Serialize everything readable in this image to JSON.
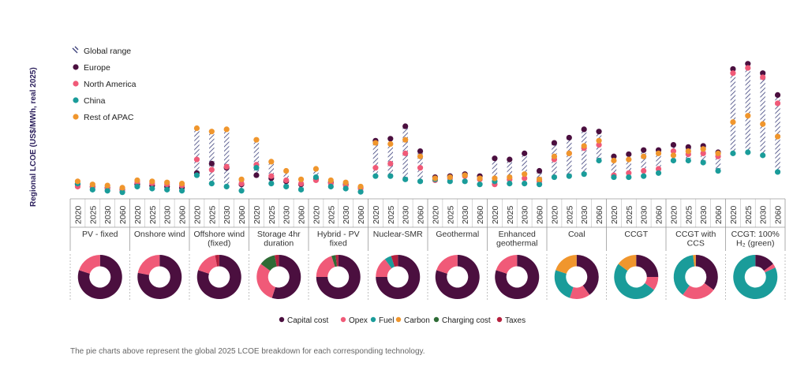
{
  "chart_data": {
    "type": "range-dot",
    "ylabel": "Regional LCOE (US$/MWh, real 2025)",
    "ylim": [
      0,
      400
    ],
    "years": [
      "2020",
      "2025",
      "2030",
      "2060"
    ],
    "legend": [
      {
        "key": "range",
        "label": "Global range"
      },
      {
        "key": "europe",
        "label": "Europe",
        "color": "#4b0f3f"
      },
      {
        "key": "north_america",
        "label": "North America",
        "color": "#f05a78"
      },
      {
        "key": "china",
        "label": "China",
        "color": "#1a9c9a"
      },
      {
        "key": "rest_apac",
        "label": "Rest of APAC",
        "color": "#f0962d"
      }
    ],
    "technologies": [
      {
        "name": "PV - fixed",
        "points": [
          {
            "year": "2020",
            "europe": 48,
            "north_america": 38,
            "china": 52,
            "rest_apac": 62
          },
          {
            "year": "2025",
            "europe": 38,
            "north_america": 35,
            "china": 24,
            "rest_apac": 48
          },
          {
            "year": "2030",
            "europe": 33,
            "north_america": 29,
            "china": 19,
            "rest_apac": 43
          },
          {
            "year": "2060",
            "europe": 24,
            "north_america": 20,
            "china": 12,
            "rest_apac": 33
          }
        ]
      },
      {
        "name": "Onshore wind",
        "points": [
          {
            "year": "2020",
            "europe": 48,
            "north_america": 58,
            "china": 38,
            "rest_apac": 67
          },
          {
            "year": "2025",
            "europe": 43,
            "north_america": 53,
            "china": 29,
            "rest_apac": 62
          },
          {
            "year": "2030",
            "europe": 38,
            "north_america": 48,
            "china": 24,
            "rest_apac": 57
          },
          {
            "year": "2060",
            "europe": 33,
            "north_america": 43,
            "china": 19,
            "rest_apac": 52
          }
        ]
      },
      {
        "name": "Offshore wind (fixed)",
        "points": [
          {
            "year": "2020",
            "europe": 100,
            "north_america": 162,
            "china": 90,
            "rest_apac": 305
          },
          {
            "year": "2025",
            "europe": 143,
            "north_america": 115,
            "china": 52,
            "rest_apac": 290
          },
          {
            "year": "2030",
            "europe": 124,
            "north_america": 129,
            "china": 38,
            "rest_apac": 300
          },
          {
            "year": "2060",
            "europe": 48,
            "north_america": 52,
            "china": 19,
            "rest_apac": 71
          }
        ]
      },
      {
        "name": "Storage 4hr duration",
        "points": [
          {
            "year": "2020",
            "europe": 90,
            "north_america": 138,
            "china": 124,
            "rest_apac": 252
          },
          {
            "year": "2025",
            "europe": 76,
            "north_america": 86,
            "china": 52,
            "rest_apac": 152
          },
          {
            "year": "2030",
            "europe": 62,
            "north_america": 67,
            "china": 38,
            "rest_apac": 110
          },
          {
            "year": "2060",
            "europe": 48,
            "north_america": 52,
            "china": 24,
            "rest_apac": 71
          }
        ]
      },
      {
        "name": "Hybrid - PV fixed",
        "points": [
          {
            "year": "2020",
            "europe": 71,
            "north_america": 67,
            "china": 81,
            "rest_apac": 119
          },
          {
            "year": "2025",
            "europe": 57,
            "north_america": 52,
            "china": 38,
            "rest_apac": 67
          },
          {
            "year": "2030",
            "europe": 48,
            "north_america": 43,
            "china": 29,
            "rest_apac": 57
          },
          {
            "year": "2060",
            "europe": 33,
            "north_america": 29,
            "china": 14,
            "rest_apac": 38
          }
        ]
      },
      {
        "name": "Nuclear-SMR",
        "points": [
          {
            "year": "2020",
            "europe": 248,
            "north_america": 124,
            "china": 86,
            "rest_apac": 238
          },
          {
            "year": "2025",
            "europe": 257,
            "north_america": 143,
            "china": 86,
            "rest_apac": 233
          },
          {
            "year": "2030",
            "europe": 314,
            "north_america": 190,
            "china": 71,
            "rest_apac": 252
          },
          {
            "year": "2060",
            "europe": 200,
            "north_america": 124,
            "china": 62,
            "rest_apac": 176
          }
        ]
      },
      {
        "name": "Geothermal",
        "points": [
          {
            "year": "2020",
            "europe": 81,
            "north_america": 67,
            "china": 71,
            "rest_apac": 76
          },
          {
            "year": "2025",
            "europe": 86,
            "north_america": 76,
            "china": 62,
            "rest_apac": 81
          },
          {
            "year": "2030",
            "europe": 95,
            "north_america": 86,
            "china": 62,
            "rest_apac": 90
          },
          {
            "year": "2060",
            "europe": 86,
            "north_america": 71,
            "china": 48,
            "rest_apac": 76
          }
        ]
      },
      {
        "name": "Enhanced geothermal",
        "points": [
          {
            "year": "2020",
            "europe": 167,
            "north_america": 48,
            "china": 62,
            "rest_apac": 76
          },
          {
            "year": "2025",
            "europe": 162,
            "north_america": 71,
            "china": 52,
            "rest_apac": 81
          },
          {
            "year": "2030",
            "europe": 190,
            "north_america": 76,
            "china": 52,
            "rest_apac": 95
          },
          {
            "year": "2060",
            "europe": 110,
            "north_america": 62,
            "china": 48,
            "rest_apac": 71
          }
        ]
      },
      {
        "name": "Coal",
        "points": [
          {
            "year": "2020",
            "europe": 238,
            "north_america": 162,
            "china": 81,
            "rest_apac": 176
          },
          {
            "year": "2025",
            "europe": 262,
            "north_america": 190,
            "china": 86,
            "rest_apac": 190
          },
          {
            "year": "2030",
            "europe": 300,
            "north_america": 214,
            "china": 95,
            "rest_apac": 224
          },
          {
            "year": "2060",
            "europe": 290,
            "north_america": 229,
            "china": 157,
            "rest_apac": 248
          }
        ]
      },
      {
        "name": "CCGT",
        "points": [
          {
            "year": "2020",
            "europe": 176,
            "north_america": 90,
            "china": 81,
            "rest_apac": 157
          },
          {
            "year": "2025",
            "europe": 186,
            "north_america": 100,
            "china": 81,
            "rest_apac": 162
          },
          {
            "year": "2030",
            "europe": 205,
            "north_america": 110,
            "china": 86,
            "rest_apac": 176
          },
          {
            "year": "2060",
            "europe": 205,
            "north_america": 119,
            "china": 100,
            "rest_apac": 190
          }
        ]
      },
      {
        "name": "CCGT with CCS",
        "points": [
          {
            "year": "2020",
            "europe": 229,
            "north_america": 200,
            "china": 157,
            "rest_apac": 181
          },
          {
            "year": "2025",
            "europe": 219,
            "north_america": 186,
            "china": 157,
            "rest_apac": 200
          },
          {
            "year": "2030",
            "europe": 224,
            "north_america": 190,
            "china": 148,
            "rest_apac": 210
          },
          {
            "year": "2060",
            "europe": 195,
            "north_america": 176,
            "china": 110,
            "rest_apac": 190
          }
        ]
      },
      {
        "name": "CCGT: 100% H₂ (green)",
        "points": [
          {
            "year": "2020",
            "europe": 576,
            "north_america": 557,
            "china": 190,
            "rest_apac": 333
          },
          {
            "year": "2025",
            "europe": 600,
            "north_america": 581,
            "china": 195,
            "rest_apac": 362
          },
          {
            "year": "2030",
            "europe": 557,
            "north_america": 538,
            "china": 181,
            "rest_apac": 324
          },
          {
            "year": "2060",
            "europe": 457,
            "north_america": 419,
            "china": 105,
            "rest_apac": 267
          }
        ]
      }
    ],
    "pie_legend": [
      {
        "key": "capital",
        "label": "Capital cost",
        "color": "#4b0f3f"
      },
      {
        "key": "opex",
        "label": "Opex",
        "color": "#f05a78"
      },
      {
        "key": "fuel",
        "label": "Fuel",
        "color": "#1a9c9a"
      },
      {
        "key": "carbon",
        "label": "Carbon",
        "color": "#f0962d"
      },
      {
        "key": "charging",
        "label": "Charging cost",
        "color": "#2e6b35"
      },
      {
        "key": "taxes",
        "label": "Taxes",
        "color": "#b5203e"
      }
    ],
    "pies": [
      {
        "tech": "PV - fixed",
        "capital": 80,
        "opex": 20,
        "fuel": 0,
        "carbon": 0,
        "charging": 0,
        "taxes": 0
      },
      {
        "tech": "Onshore wind",
        "capital": 78,
        "opex": 22,
        "fuel": 0,
        "carbon": 0,
        "charging": 0,
        "taxes": 0
      },
      {
        "tech": "Offshore wind (fixed)",
        "capital": 80,
        "opex": 17,
        "fuel": 0,
        "carbon": 0,
        "charging": 0,
        "taxes": 3
      },
      {
        "tech": "Storage 4hr duration",
        "capital": 55,
        "opex": 30,
        "fuel": 0,
        "carbon": 0,
        "charging": 12,
        "taxes": 3
      },
      {
        "tech": "Hybrid - PV fixed",
        "capital": 75,
        "opex": 20,
        "fuel": 0,
        "carbon": 0,
        "charging": 3,
        "taxes": 2
      },
      {
        "tech": "Nuclear-SMR",
        "capital": 75,
        "opex": 15,
        "fuel": 5,
        "carbon": 0,
        "charging": 0,
        "taxes": 5
      },
      {
        "tech": "Geothermal",
        "capital": 80,
        "opex": 20,
        "fuel": 0,
        "carbon": 0,
        "charging": 0,
        "taxes": 0
      },
      {
        "tech": "Enhanced geothermal",
        "capital": 80,
        "opex": 20,
        "fuel": 0,
        "carbon": 0,
        "charging": 0,
        "taxes": 0
      },
      {
        "tech": "Coal",
        "capital": 40,
        "opex": 15,
        "fuel": 25,
        "carbon": 20,
        "charging": 0,
        "taxes": 0
      },
      {
        "tech": "CCGT",
        "capital": 25,
        "opex": 10,
        "fuel": 50,
        "carbon": 15,
        "charging": 0,
        "taxes": 0
      },
      {
        "tech": "CCGT with CCS",
        "capital": 35,
        "opex": 25,
        "fuel": 38,
        "carbon": 2,
        "charging": 0,
        "taxes": 0
      },
      {
        "tech": "CCGT: 100% H₂ (green)",
        "capital": 15,
        "opex": 3,
        "fuel": 82,
        "carbon": 0,
        "charging": 0,
        "taxes": 0
      }
    ]
  },
  "tech_labels": [
    [
      "PV - fixed"
    ],
    [
      "Onshore wind"
    ],
    [
      "Offshore wind",
      "(fixed)"
    ],
    [
      "Storage 4hr",
      "duration"
    ],
    [
      "Hybrid - PV",
      "fixed"
    ],
    [
      "Nuclear-SMR"
    ],
    [
      "Geothermal"
    ],
    [
      "Enhanced",
      "geothermal"
    ],
    [
      "Coal"
    ],
    [
      "CCGT"
    ],
    [
      "CCGT with",
      "CCS"
    ],
    [
      "CCGT: 100%",
      "H₂ (green)"
    ]
  ],
  "footnote": "The pie charts above represent the global 2025 LCOE breakdown for each corresponding technology."
}
